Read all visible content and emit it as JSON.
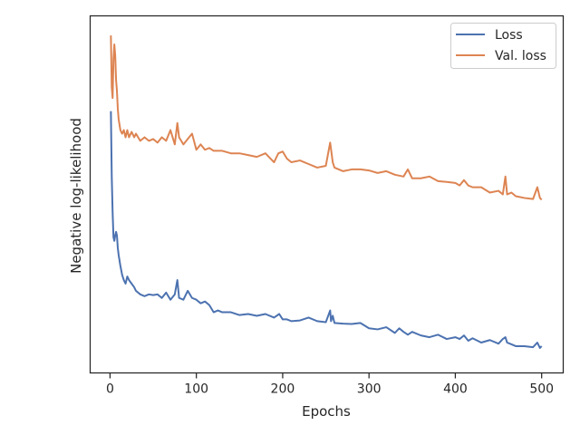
{
  "chart_data": {
    "type": "line",
    "title": "",
    "xlabel": "Epochs",
    "ylabel": "Negative log-likelihood",
    "xlim": [
      -23,
      525
    ],
    "ylim": [
      0,
      100
    ],
    "x_ticks": [
      0,
      100,
      200,
      300,
      400,
      500
    ],
    "y_ticks_shown": false,
    "grid": false,
    "legend_position": "top-right",
    "series": [
      {
        "name": "Loss",
        "color": "#4c72b0",
        "x": [
          1,
          2,
          3,
          4,
          5,
          6,
          7,
          8,
          9,
          10,
          12,
          14,
          16,
          18,
          20,
          22,
          25,
          28,
          30,
          35,
          40,
          45,
          50,
          55,
          60,
          65,
          70,
          75,
          78,
          80,
          85,
          90,
          95,
          100,
          105,
          110,
          115,
          120,
          125,
          130,
          140,
          150,
          160,
          170,
          180,
          190,
          196,
          200,
          205,
          210,
          220,
          230,
          240,
          250,
          255,
          256,
          258,
          260,
          270,
          280,
          290,
          300,
          310,
          320,
          330,
          335,
          340,
          345,
          350,
          360,
          370,
          380,
          390,
          400,
          405,
          410,
          415,
          420,
          430,
          440,
          450,
          455,
          458,
          460,
          465,
          470,
          480,
          490,
          495,
          498,
          500
        ],
        "y": [
          73.3,
          55,
          45,
          38,
          37,
          38.5,
          39.5,
          38.5,
          35,
          33,
          30,
          27.5,
          26,
          25,
          27,
          26,
          25,
          24,
          23,
          22,
          21.5,
          22,
          21.8,
          22,
          21,
          22.5,
          20.5,
          22,
          26,
          21,
          20.5,
          23,
          21,
          20.5,
          19.5,
          20,
          19,
          17,
          17.5,
          17,
          17,
          16.2,
          16.5,
          16,
          16.5,
          15.5,
          16.5,
          15,
          15,
          14.5,
          14.7,
          15.5,
          14.5,
          14.2,
          17.5,
          14.5,
          16,
          14,
          13.8,
          13.7,
          14,
          12.5,
          12.2,
          12.8,
          11.2,
          12.5,
          11.5,
          10.7,
          11.5,
          10.5,
          10,
          10.7,
          9.5,
          10,
          9.5,
          10.5,
          9,
          9.7,
          8.5,
          9.2,
          8.2,
          9.5,
          10,
          8.5,
          8,
          7.5,
          7.5,
          7.2,
          8.5,
          7,
          7.5
        ]
      },
      {
        "name": "Val. loss",
        "color": "#dd8452",
        "x": [
          1,
          2,
          3,
          4,
          5,
          6,
          7,
          8,
          9,
          10,
          12,
          14,
          16,
          18,
          20,
          22,
          25,
          28,
          30,
          35,
          40,
          45,
          50,
          55,
          60,
          65,
          70,
          75,
          78,
          80,
          85,
          90,
          95,
          100,
          105,
          110,
          115,
          120,
          130,
          140,
          150,
          160,
          170,
          180,
          190,
          195,
          200,
          205,
          210,
          220,
          230,
          240,
          250,
          255,
          258,
          260,
          270,
          280,
          290,
          300,
          310,
          320,
          330,
          340,
          345,
          350,
          360,
          370,
          380,
          390,
          400,
          405,
          410,
          415,
          420,
          430,
          440,
          450,
          455,
          458,
          460,
          465,
          470,
          480,
          490,
          495,
          498,
          500
        ],
        "y": [
          94.5,
          80,
          77,
          88,
          92,
          89,
          82,
          79,
          74,
          71,
          68,
          67,
          68,
          66,
          68,
          66,
          67.5,
          66,
          67,
          65,
          66,
          65,
          65.5,
          64.5,
          66,
          65,
          68,
          64,
          70,
          66,
          64,
          65.5,
          67,
          62.5,
          64,
          62.5,
          63,
          62.2,
          62.2,
          61.5,
          61.5,
          61,
          60.5,
          61.5,
          59,
          61.5,
          62,
          60,
          59,
          59.5,
          58.5,
          57.5,
          58,
          64.5,
          59,
          57.5,
          56.5,
          57,
          57,
          56.7,
          56,
          56.5,
          55.5,
          55,
          57,
          54.5,
          54.5,
          55,
          53.7,
          53.5,
          53.2,
          52.5,
          54,
          52.5,
          52,
          52,
          50.5,
          51,
          50,
          55,
          50,
          50.5,
          49.5,
          49,
          48.7,
          52,
          49,
          48.5
        ]
      }
    ]
  }
}
